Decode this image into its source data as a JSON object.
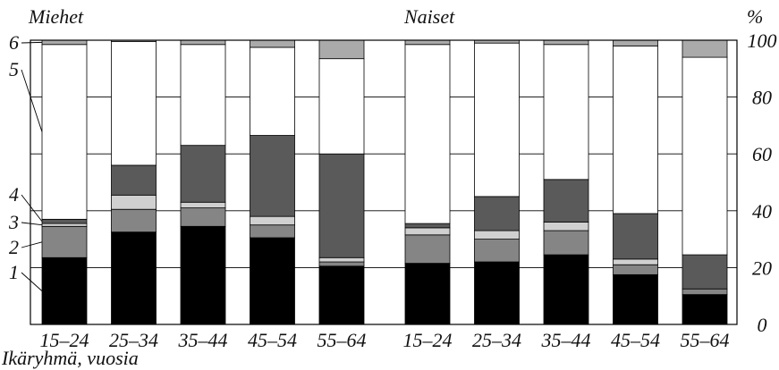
{
  "chart_data": {
    "type": "bar",
    "stacked": true,
    "groups": [
      {
        "label": "Miehet",
        "categories": [
          "15–24",
          "25–34",
          "35–44",
          "45–54",
          "55–64"
        ]
      },
      {
        "label": "Naiset",
        "categories": [
          "15–24",
          "25–34",
          "35–44",
          "45–54",
          "55–64"
        ]
      }
    ],
    "xlabel": "Ikäryhmä, vuosia",
    "ylabel": "%",
    "ylim": [
      0,
      100
    ],
    "yticks": [
      0,
      20,
      40,
      60,
      80,
      100
    ],
    "grid": true,
    "series": [
      {
        "name": "1",
        "color": "#000000",
        "values": [
          23.5,
          32.5,
          34.5,
          30.5,
          20.5,
          21.5,
          22.0,
          24.5,
          17.5,
          10.5
        ]
      },
      {
        "name": "2",
        "color": "#858585",
        "values": [
          11.0,
          8.0,
          6.5,
          4.5,
          1.5,
          10.0,
          8.0,
          8.5,
          3.5,
          2.0
        ]
      },
      {
        "name": "3",
        "color": "#d0d0d0",
        "values": [
          1.0,
          5.0,
          2.0,
          3.0,
          1.5,
          2.5,
          3.0,
          3.0,
          2.0,
          0.0
        ]
      },
      {
        "name": "4",
        "color": "#5a5a5a",
        "values": [
          1.5,
          10.5,
          20.0,
          28.5,
          36.5,
          1.5,
          12.0,
          15.0,
          16.0,
          12.0
        ]
      },
      {
        "name": "5",
        "color": "#ffffff",
        "values": [
          61.5,
          43.5,
          35.5,
          31.0,
          33.5,
          63.0,
          54.0,
          47.5,
          59.0,
          69.5
        ]
      },
      {
        "name": "6",
        "color": "#aaaaaa",
        "values": [
          1.5,
          0.5,
          1.5,
          2.5,
          6.5,
          1.5,
          1.0,
          1.5,
          2.0,
          6.0
        ]
      }
    ]
  }
}
